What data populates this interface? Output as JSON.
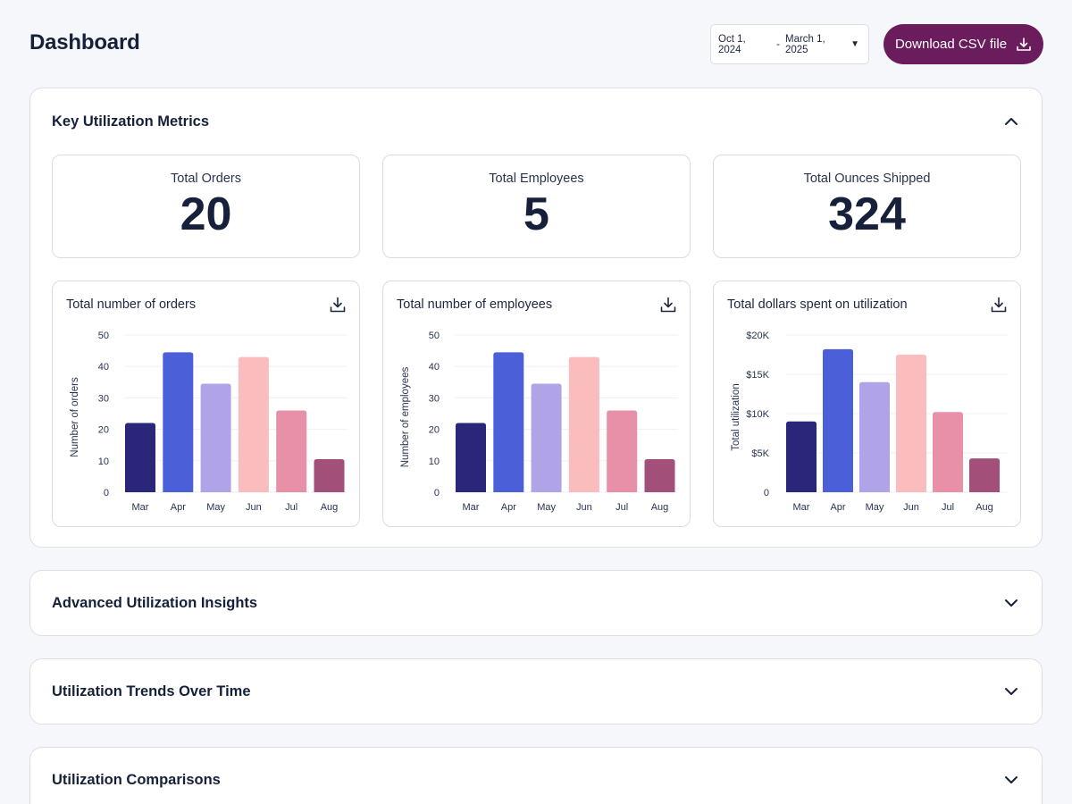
{
  "header": {
    "title": "Dashboard",
    "date_start": "Oct 1, 2024",
    "date_sep": "-",
    "date_end": "March 1, 2025",
    "download_label": "Download CSV file"
  },
  "colors": {
    "brand": "#6b1c5c",
    "bars": [
      "#2a277a",
      "#4a5fd8",
      "#b1a3e8",
      "#fbbcbd",
      "#e890a8",
      "#a25079"
    ]
  },
  "key_metrics": {
    "title": "Key Utilization Metrics",
    "expanded": true,
    "stats": [
      {
        "label": "Total Orders",
        "value": "20"
      },
      {
        "label": "Total Employees",
        "value": "5"
      },
      {
        "label": "Total Ounces Shipped",
        "value": "324"
      }
    ]
  },
  "chart_data": [
    {
      "type": "bar",
      "title": "Total number of orders",
      "xlabel": "",
      "ylabel": "Number of orders",
      "categories": [
        "Mar",
        "Apr",
        "May",
        "Jun",
        "Jul",
        "Aug"
      ],
      "values": [
        22,
        44.5,
        34.5,
        43,
        26,
        10.5
      ],
      "ylim": [
        0,
        50
      ],
      "yticks": [
        0,
        10,
        20,
        30,
        40,
        50
      ],
      "ytick_labels": [
        "0",
        "10",
        "20",
        "30",
        "40",
        "50"
      ],
      "grid": true
    },
    {
      "type": "bar",
      "title": "Total number of employees",
      "xlabel": "",
      "ylabel": "Number of employees",
      "categories": [
        "Mar",
        "Apr",
        "May",
        "Jun",
        "Jul",
        "Aug"
      ],
      "values": [
        22,
        44.5,
        34.5,
        43,
        26,
        10.5
      ],
      "ylim": [
        0,
        50
      ],
      "yticks": [
        0,
        10,
        20,
        30,
        40,
        50
      ],
      "ytick_labels": [
        "0",
        "10",
        "20",
        "30",
        "40",
        "50"
      ],
      "grid": true
    },
    {
      "type": "bar",
      "title": "Total dollars spent on utilization",
      "xlabel": "",
      "ylabel": "Total  utilization",
      "categories": [
        "Mar",
        "Apr",
        "May",
        "Jun",
        "Jul",
        "Aug"
      ],
      "values": [
        9000,
        18200,
        14000,
        17500,
        10200,
        4300
      ],
      "ylim": [
        0,
        20000
      ],
      "yticks": [
        0,
        5000,
        10000,
        15000,
        20000
      ],
      "ytick_labels": [
        "0",
        "$5K",
        "$10K",
        "$15K",
        "$20K"
      ],
      "grid": true
    }
  ],
  "sections": [
    {
      "title": "Advanced Utilization Insights",
      "expanded": false
    },
    {
      "title": "Utilization Trends Over Time",
      "expanded": false
    },
    {
      "title": "Utilization Comparisons",
      "expanded": false
    }
  ]
}
